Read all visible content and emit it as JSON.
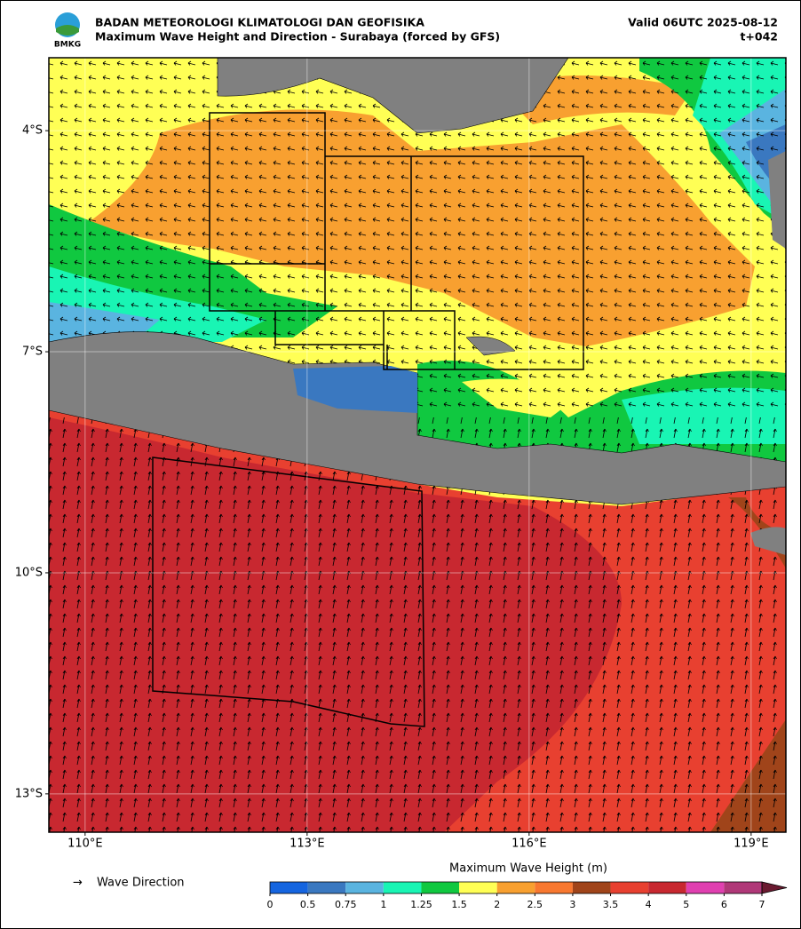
{
  "header": {
    "agency": "BADAN METEOROLOGI KLIMATOLOGI DAN GEOFISIKA",
    "title": "Maximum Wave Height and Direction - Surabaya (forced by GFS)",
    "valid": "Valid 06UTC 2025-08-12",
    "lead": "t+042",
    "logo_text": "BMKG"
  },
  "map": {
    "xlim": [
      109.51,
      119.47
    ],
    "ylim": [
      -13.52,
      -3.01
    ],
    "grid": true,
    "xticks": [
      {
        "value": 110,
        "label": "110°E"
      },
      {
        "value": 113,
        "label": "113°E"
      },
      {
        "value": 116,
        "label": "116°E"
      },
      {
        "value": 119,
        "label": "119°E"
      }
    ],
    "yticks": [
      {
        "value": -4,
        "label": "4°S"
      },
      {
        "value": -7,
        "label": "7°S"
      },
      {
        "value": -10,
        "label": "10°S"
      },
      {
        "value": -13,
        "label": "13°S"
      }
    ]
  },
  "legend": {
    "arrow": "→",
    "label": "Wave Direction"
  },
  "colorbar": {
    "title": "Maximum Wave Height (m)",
    "ticks": [
      0,
      0.5,
      0.75,
      1,
      1.25,
      1.5,
      2,
      2.5,
      3,
      3.5,
      4,
      5,
      6,
      7
    ],
    "colors": [
      "#1565e0",
      "#3a78c0",
      "#5ab4e0",
      "#19f5b4",
      "#10c840",
      "#ffff55",
      "#f8a030",
      "#f87830",
      "#a0441a",
      "#e84030",
      "#c82830",
      "#e040b0",
      "#b03878",
      "#6a1a30"
    ]
  }
}
